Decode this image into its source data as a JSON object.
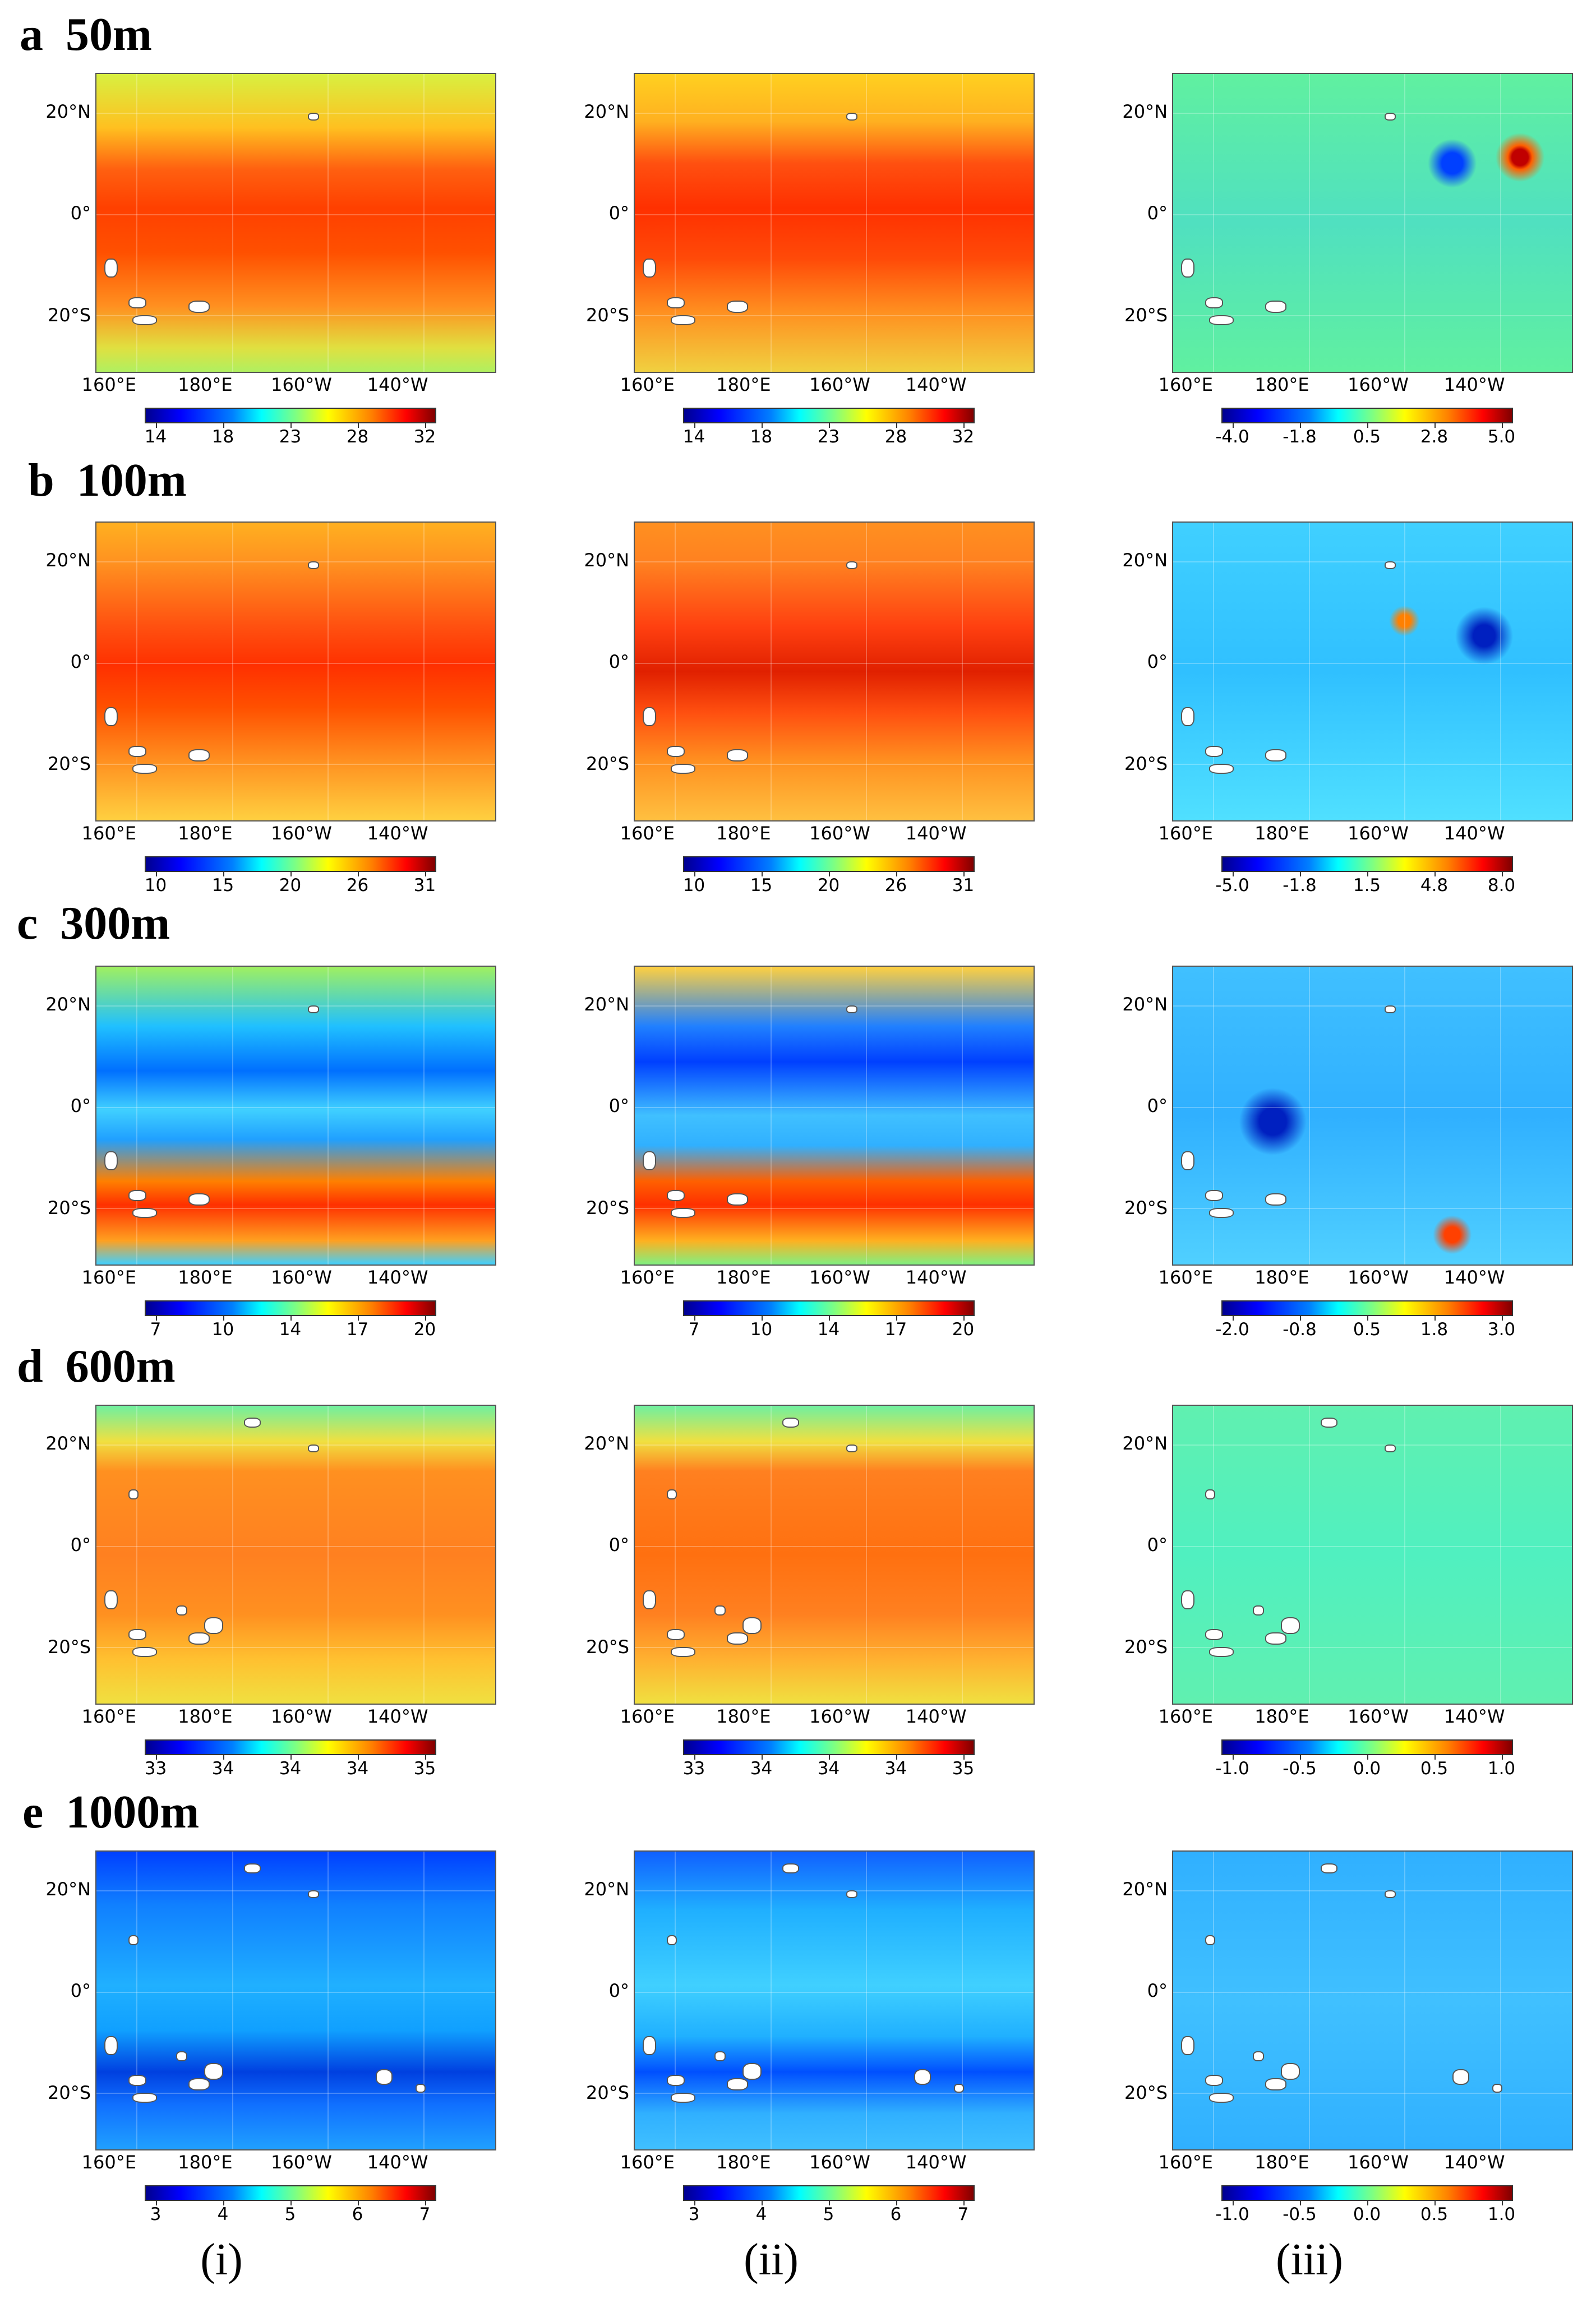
{
  "figure": {
    "column_labels": [
      "(i)",
      "(ii)",
      "(iii)"
    ],
    "rows": [
      {
        "letter": "a",
        "depth": "50m",
        "colorbars": [
          [
            "14",
            "18",
            "23",
            "28",
            "32"
          ],
          [
            "14",
            "18",
            "23",
            "28",
            "32"
          ],
          [
            "-4.0",
            "-1.8",
            "0.5",
            "2.8",
            "5.0"
          ]
        ]
      },
      {
        "letter": "b",
        "depth": "100m",
        "colorbars": [
          [
            "10",
            "15",
            "20",
            "26",
            "31"
          ],
          [
            "10",
            "15",
            "20",
            "26",
            "31"
          ],
          [
            "-5.0",
            "-1.8",
            "1.5",
            "4.8",
            "8.0"
          ]
        ]
      },
      {
        "letter": "c",
        "depth": "300m",
        "colorbars": [
          [
            "7",
            "10",
            "14",
            "17",
            "20"
          ],
          [
            "7",
            "10",
            "14",
            "17",
            "20"
          ],
          [
            "-2.0",
            "-0.8",
            "0.5",
            "1.8",
            "3.0"
          ]
        ]
      },
      {
        "letter": "d",
        "depth": "600m",
        "colorbars": [
          [
            "33",
            "34",
            "34",
            "34",
            "35"
          ],
          [
            "33",
            "34",
            "34",
            "34",
            "35"
          ],
          [
            "-1.0",
            "-0.5",
            "0.0",
            "0.5",
            "1.0"
          ]
        ]
      },
      {
        "letter": "e",
        "depth": "1000m",
        "colorbars": [
          [
            "3",
            "4",
            "5",
            "6",
            "7"
          ],
          [
            "3",
            "4",
            "5",
            "6",
            "7"
          ],
          [
            "-1.0",
            "-0.5",
            "0.0",
            "0.5",
            "1.0"
          ]
        ]
      }
    ],
    "lat_labels": [
      "20°N",
      "0°",
      "20°S"
    ],
    "lon_labels": [
      "160°E",
      "180°E",
      "160°W",
      "140°W"
    ]
  },
  "chart_data": {
    "type": "heatmap",
    "title": "",
    "description_rows": [
      "50m",
      "100m",
      "300m",
      "600m",
      "1000m"
    ],
    "columns": [
      "(i)",
      "(ii)",
      "(iii)"
    ],
    "x_axis": {
      "ticks": [
        "160°E",
        "180°E",
        "160°W",
        "140°W"
      ]
    },
    "y_axis": {
      "ticks": [
        "20°N",
        "0°",
        "20°S"
      ]
    },
    "colorbar_ranges": [
      {
        "row": "a",
        "i": [
          14,
          32
        ],
        "ii": [
          14,
          32
        ],
        "iii": [
          -4.0,
          5.0
        ]
      },
      {
        "row": "b",
        "i": [
          10,
          31
        ],
        "ii": [
          10,
          31
        ],
        "iii": [
          -5.0,
          8.0
        ]
      },
      {
        "row": "c",
        "i": [
          7,
          20
        ],
        "ii": [
          7,
          20
        ],
        "iii": [
          -2.0,
          3.0
        ]
      },
      {
        "row": "d",
        "i": [
          33,
          35
        ],
        "ii": [
          33,
          35
        ],
        "iii": [
          -1.0,
          1.0
        ]
      },
      {
        "row": "e",
        "i": [
          3,
          7
        ],
        "ii": [
          3,
          7
        ],
        "iii": [
          -1.0,
          1.0
        ]
      }
    ],
    "colormap": "jet"
  }
}
